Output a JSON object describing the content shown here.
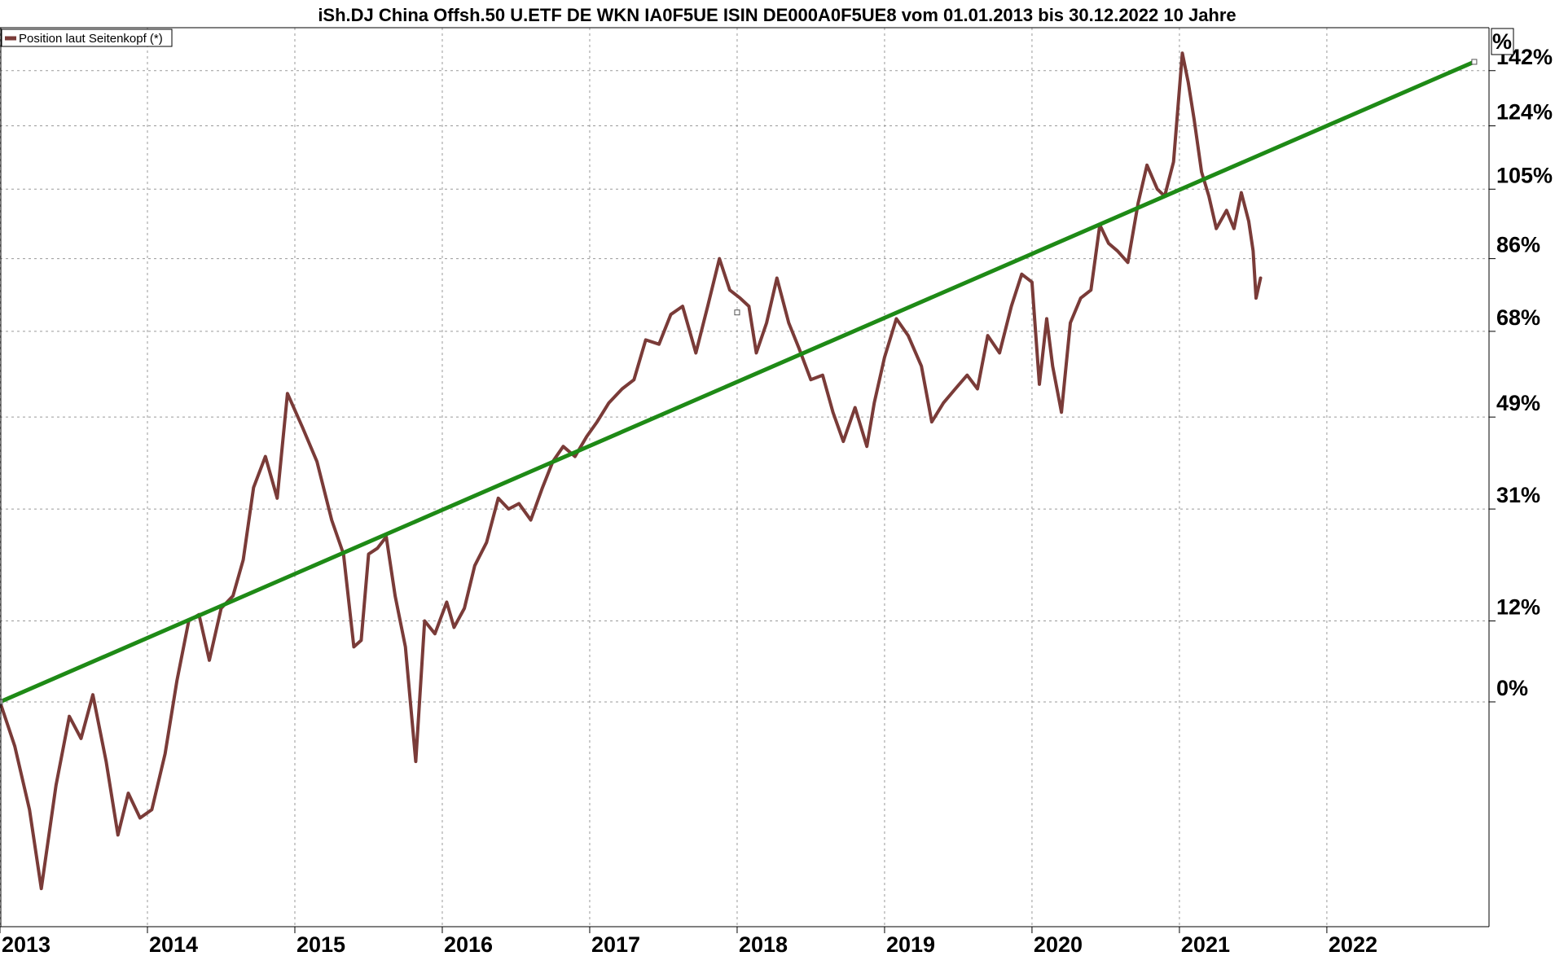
{
  "colors": {
    "price_series": "#7a3b38",
    "trend_line": "#1e8a16",
    "grid": "#9a9a9a",
    "axis": "#000000",
    "background": "#ffffff"
  },
  "legend": {
    "label": "Position laut Seitenkopf (*)",
    "placement": "top-left"
  },
  "y_unit_label": "%",
  "chart_data": {
    "type": "line",
    "title": "iSh.DJ China Offsh.50 U.ETF DE WKN IA0F5UE ISIN DE000A0F5UE8 vom 01.01.2013 bis 30.12.2022 10 Jahre",
    "xlabel": "",
    "ylabel": "",
    "x_ticks": [
      "2013",
      "2014",
      "2015",
      "2016",
      "2017",
      "2018",
      "2019",
      "2020",
      "2021",
      "2022"
    ],
    "y_ticks": [
      "0%",
      "12%",
      "31%",
      "49%",
      "68%",
      "86%",
      "105%",
      "124%",
      "142%"
    ],
    "y_tick_values": [
      0,
      12,
      31,
      49,
      68,
      86,
      105,
      124,
      142
    ],
    "xlim": [
      2013.0,
      2023.1
    ],
    "ylim": [
      -27,
      157
    ],
    "y_scale": "log",
    "grid": true,
    "series": [
      {
        "name": "Position laut Seitenkopf (*)",
        "x": [
          2013.0,
          2013.1,
          2013.2,
          2013.28,
          2013.38,
          2013.47,
          2013.55,
          2013.63,
          2013.72,
          2013.8,
          2013.87,
          2013.95,
          2014.03,
          2014.12,
          2014.2,
          2014.28,
          2014.35,
          2014.42,
          2014.5,
          2014.58,
          2014.65,
          2014.72,
          2014.8,
          2014.88,
          2014.95,
          2015.05,
          2015.15,
          2015.25,
          2015.33,
          2015.4,
          2015.45,
          2015.5,
          2015.56,
          2015.62,
          2015.68,
          2015.75,
          2015.82,
          2015.88,
          2015.95,
          2016.03,
          2016.08,
          2016.15,
          2016.22,
          2016.3,
          2016.38,
          2016.45,
          2016.52,
          2016.6,
          2016.68,
          2016.75,
          2016.82,
          2016.9,
          2016.98,
          2017.05,
          2017.13,
          2017.22,
          2017.3,
          2017.38,
          2017.47,
          2017.55,
          2017.63,
          2017.72,
          2017.8,
          2017.88,
          2017.95,
          2018.02,
          2018.08,
          2018.13,
          2018.2,
          2018.27,
          2018.35,
          2018.42,
          2018.5,
          2018.58,
          2018.65,
          2018.72,
          2018.8,
          2018.88,
          2018.93,
          2019.0,
          2019.08,
          2019.16,
          2019.25,
          2019.32,
          2019.4,
          2019.48,
          2019.56,
          2019.63,
          2019.7,
          2019.78,
          2019.86,
          2019.93,
          2020.0,
          2020.05,
          2020.1,
          2020.14,
          2020.2,
          2020.26,
          2020.33,
          2020.4,
          2020.46,
          2020.52,
          2020.58,
          2020.65,
          2020.72,
          2020.78,
          2020.85,
          2020.9,
          2020.96,
          2021.02,
          2021.06,
          2021.1,
          2021.15,
          2021.2,
          2021.25,
          2021.32,
          2021.37,
          2021.42,
          2021.47,
          2021.5,
          2021.52,
          2021.55
        ],
        "values": [
          0,
          -6,
          -14,
          -23,
          -11,
          -2,
          -5,
          1,
          -8,
          -17,
          -12,
          -15,
          -14,
          -7,
          3,
          12,
          13,
          6,
          14,
          16,
          22,
          35,
          41,
          33,
          54,
          47,
          40,
          29,
          23,
          8,
          9,
          23,
          24,
          26,
          16,
          8,
          -8,
          12,
          10,
          15,
          11,
          14,
          21,
          25,
          33,
          31,
          32,
          29,
          35,
          40,
          43,
          41,
          45,
          48,
          52,
          55,
          57,
          66,
          65,
          72,
          74,
          63,
          74,
          86,
          78,
          76,
          74,
          63,
          70,
          81,
          70,
          64,
          57,
          58,
          50,
          44,
          51,
          43,
          52,
          62,
          71,
          67,
          60,
          48,
          52,
          55,
          58,
          55,
          67,
          63,
          74,
          82,
          80,
          56,
          71,
          60,
          50,
          70,
          76,
          78,
          95,
          90,
          88,
          85,
          101,
          112,
          105,
          103,
          113,
          148,
          138,
          126,
          110,
          103,
          94,
          99,
          94,
          104,
          96,
          88,
          76,
          81
        ]
      },
      {
        "name": "",
        "x": [
          2013.0,
          2023.0
        ],
        "values": [
          0,
          145
        ]
      }
    ]
  }
}
